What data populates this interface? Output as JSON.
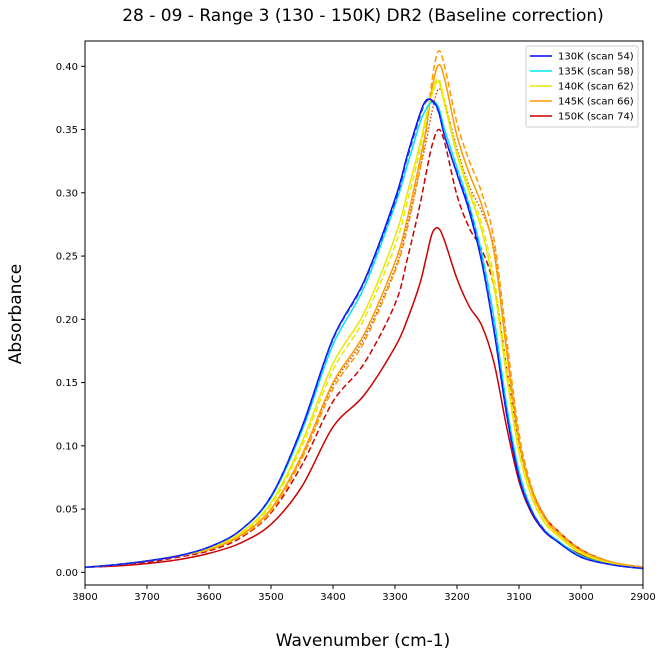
{
  "chart_data": {
    "type": "line",
    "title": "28 - 09 - Range 3 (130 - 150K) DR2 (Baseline correction)",
    "xlabel": "Wavenumber (cm-1)",
    "ylabel": "Absorbance",
    "xlim": [
      3800,
      2900
    ],
    "ylim": [
      -0.01,
      0.42
    ],
    "x_reversed": true,
    "grid": false,
    "legend_position": "top-right",
    "xticks": [
      3800,
      3700,
      3600,
      3500,
      3400,
      3300,
      3200,
      3100,
      3000,
      2900
    ],
    "xtick_labels": [
      "3800",
      "3700",
      "3600",
      "3500",
      "3400",
      "3300",
      "3200",
      "3100",
      "3000",
      "2900"
    ],
    "yticks": [
      0.0,
      0.05,
      0.1,
      0.15,
      0.2,
      0.25,
      0.3,
      0.35,
      0.4
    ],
    "ytick_labels": [
      "0.00",
      "0.05",
      "0.10",
      "0.15",
      "0.20",
      "0.25",
      "0.30",
      "0.35",
      "0.40"
    ],
    "series": [
      {
        "name": "130K (scan 54)",
        "color": "#0000ff",
        "dash": "solid",
        "x": [
          3800,
          3750,
          3700,
          3650,
          3600,
          3550,
          3500,
          3450,
          3400,
          3350,
          3300,
          3280,
          3260,
          3250,
          3240,
          3230,
          3220,
          3200,
          3180,
          3160,
          3140,
          3120,
          3100,
          3080,
          3060,
          3040,
          3000,
          2950,
          2900
        ],
        "y": [
          0.004,
          0.006,
          0.009,
          0.013,
          0.02,
          0.033,
          0.06,
          0.115,
          0.185,
          0.23,
          0.295,
          0.33,
          0.362,
          0.373,
          0.373,
          0.365,
          0.345,
          0.315,
          0.285,
          0.245,
          0.19,
          0.125,
          0.075,
          0.048,
          0.033,
          0.025,
          0.012,
          0.006,
          0.003
        ]
      },
      {
        "name": "135K (scan 58)",
        "color": "#00e5ee",
        "dash": "solid",
        "x": [
          3800,
          3750,
          3700,
          3650,
          3600,
          3550,
          3500,
          3450,
          3400,
          3350,
          3300,
          3280,
          3260,
          3250,
          3240,
          3230,
          3220,
          3200,
          3180,
          3160,
          3140,
          3120,
          3100,
          3080,
          3060,
          3040,
          3000,
          2950,
          2900
        ],
        "y": [
          0.004,
          0.006,
          0.009,
          0.013,
          0.02,
          0.033,
          0.059,
          0.112,
          0.18,
          0.225,
          0.29,
          0.322,
          0.355,
          0.366,
          0.372,
          0.368,
          0.35,
          0.32,
          0.29,
          0.252,
          0.2,
          0.132,
          0.08,
          0.05,
          0.034,
          0.026,
          0.013,
          0.006,
          0.003
        ]
      },
      {
        "name": "140K (scan 62)",
        "color": "#e8e800",
        "dash": "solid",
        "x": [
          3800,
          3750,
          3700,
          3650,
          3600,
          3550,
          3500,
          3450,
          3400,
          3350,
          3300,
          3280,
          3260,
          3250,
          3240,
          3230,
          3220,
          3200,
          3180,
          3160,
          3140,
          3120,
          3100,
          3080,
          3060,
          3040,
          3000,
          2950,
          2900
        ],
        "y": [
          0.004,
          0.006,
          0.009,
          0.013,
          0.019,
          0.031,
          0.055,
          0.103,
          0.165,
          0.205,
          0.265,
          0.3,
          0.338,
          0.36,
          0.378,
          0.388,
          0.37,
          0.33,
          0.3,
          0.27,
          0.225,
          0.155,
          0.095,
          0.06,
          0.04,
          0.03,
          0.015,
          0.007,
          0.003
        ]
      },
      {
        "name": "145K (scan 66)",
        "color": "#ff9900",
        "dash": "solid",
        "x": [
          3800,
          3750,
          3700,
          3650,
          3600,
          3550,
          3500,
          3450,
          3400,
          3350,
          3300,
          3280,
          3260,
          3250,
          3240,
          3230,
          3220,
          3200,
          3180,
          3160,
          3140,
          3120,
          3100,
          3080,
          3060,
          3040,
          3000,
          2950,
          2900
        ],
        "y": [
          0.004,
          0.006,
          0.009,
          0.013,
          0.018,
          0.029,
          0.05,
          0.093,
          0.15,
          0.188,
          0.245,
          0.28,
          0.325,
          0.35,
          0.383,
          0.401,
          0.39,
          0.345,
          0.315,
          0.29,
          0.252,
          0.175,
          0.105,
          0.065,
          0.044,
          0.032,
          0.017,
          0.008,
          0.004
        ]
      },
      {
        "name": "150K (scan 74)",
        "color": "#cc0000",
        "dash": "solid",
        "x": [
          3800,
          3750,
          3700,
          3650,
          3600,
          3550,
          3500,
          3450,
          3400,
          3350,
          3300,
          3280,
          3260,
          3250,
          3240,
          3230,
          3220,
          3200,
          3180,
          3160,
          3140,
          3120,
          3100,
          3080,
          3060,
          3040,
          3000,
          2950,
          2900
        ],
        "y": [
          0.004,
          0.005,
          0.007,
          0.01,
          0.015,
          0.023,
          0.038,
          0.068,
          0.115,
          0.14,
          0.178,
          0.2,
          0.228,
          0.248,
          0.268,
          0.272,
          0.262,
          0.232,
          0.21,
          0.195,
          0.165,
          0.115,
          0.072,
          0.047,
          0.033,
          0.025,
          0.014,
          0.007,
          0.004
        ]
      },
      {
        "name": "",
        "color": "#2233ee",
        "dash": "dashed",
        "x": [
          3800,
          3750,
          3700,
          3650,
          3600,
          3550,
          3500,
          3450,
          3400,
          3350,
          3300,
          3280,
          3260,
          3250,
          3240,
          3230,
          3220,
          3200,
          3180,
          3160,
          3140,
          3120,
          3100,
          3080,
          3060,
          3040,
          3000,
          2950,
          2900
        ],
        "y": [
          0.004,
          0.006,
          0.009,
          0.013,
          0.02,
          0.033,
          0.06,
          0.114,
          0.184,
          0.229,
          0.293,
          0.328,
          0.36,
          0.372,
          0.372,
          0.364,
          0.345,
          0.316,
          0.287,
          0.247,
          0.192,
          0.127,
          0.076,
          0.049,
          0.034,
          0.025,
          0.012,
          0.006,
          0.003
        ]
      },
      {
        "name": "",
        "color": "#e8e800",
        "dash": "dashed",
        "x": [
          3800,
          3750,
          3700,
          3650,
          3600,
          3550,
          3500,
          3450,
          3400,
          3350,
          3300,
          3280,
          3260,
          3250,
          3240,
          3230,
          3220,
          3200,
          3180,
          3160,
          3140,
          3120,
          3100,
          3080,
          3060,
          3040,
          3000,
          2950,
          2900
        ],
        "y": [
          0.004,
          0.006,
          0.009,
          0.013,
          0.019,
          0.03,
          0.053,
          0.1,
          0.16,
          0.2,
          0.258,
          0.293,
          0.333,
          0.358,
          0.38,
          0.39,
          0.373,
          0.333,
          0.303,
          0.275,
          0.232,
          0.162,
          0.098,
          0.062,
          0.041,
          0.031,
          0.016,
          0.007,
          0.003
        ]
      },
      {
        "name": "",
        "color": "#ff9900",
        "dash": "dashed",
        "x": [
          3800,
          3750,
          3700,
          3650,
          3600,
          3550,
          3500,
          3450,
          3400,
          3350,
          3300,
          3280,
          3260,
          3250,
          3240,
          3230,
          3220,
          3200,
          3180,
          3160,
          3140,
          3120,
          3100,
          3080,
          3060,
          3040,
          3000,
          2950,
          2900
        ],
        "y": [
          0.004,
          0.006,
          0.009,
          0.013,
          0.018,
          0.028,
          0.048,
          0.09,
          0.145,
          0.182,
          0.238,
          0.272,
          0.318,
          0.348,
          0.39,
          0.412,
          0.4,
          0.355,
          0.325,
          0.3,
          0.262,
          0.185,
          0.11,
          0.068,
          0.046,
          0.034,
          0.018,
          0.008,
          0.004
        ]
      },
      {
        "name": "",
        "color": "#cc0000",
        "dash": "dashed",
        "x": [
          3800,
          3750,
          3700,
          3650,
          3600,
          3550,
          3500,
          3450,
          3400,
          3350,
          3300,
          3280,
          3260,
          3250,
          3240,
          3230,
          3220,
          3200,
          3180,
          3160,
          3140,
          3120,
          3100,
          3080,
          3060,
          3040,
          3000,
          2950,
          2900
        ],
        "y": [
          0.004,
          0.006,
          0.008,
          0.012,
          0.017,
          0.027,
          0.047,
          0.085,
          0.135,
          0.165,
          0.212,
          0.248,
          0.29,
          0.315,
          0.338,
          0.35,
          0.34,
          0.298,
          0.272,
          0.255,
          0.225,
          0.162,
          0.102,
          0.066,
          0.045,
          0.034,
          0.018,
          0.008,
          0.004
        ]
      },
      {
        "name": "",
        "color": "#cc4400",
        "dash": "dotted",
        "x": [
          3800,
          3750,
          3700,
          3650,
          3600,
          3550,
          3500,
          3450,
          3400,
          3350,
          3300,
          3280,
          3260,
          3250,
          3240,
          3230,
          3220,
          3200,
          3180,
          3160,
          3140,
          3120,
          3100,
          3080,
          3060,
          3040,
          3000,
          2950,
          2900
        ],
        "y": [
          0.004,
          0.006,
          0.009,
          0.013,
          0.018,
          0.029,
          0.05,
          0.092,
          0.148,
          0.185,
          0.24,
          0.275,
          0.318,
          0.34,
          0.365,
          0.382,
          0.372,
          0.335,
          0.305,
          0.285,
          0.255,
          0.178,
          0.105,
          0.065,
          0.044,
          0.032,
          0.017,
          0.008,
          0.004
        ]
      }
    ]
  }
}
